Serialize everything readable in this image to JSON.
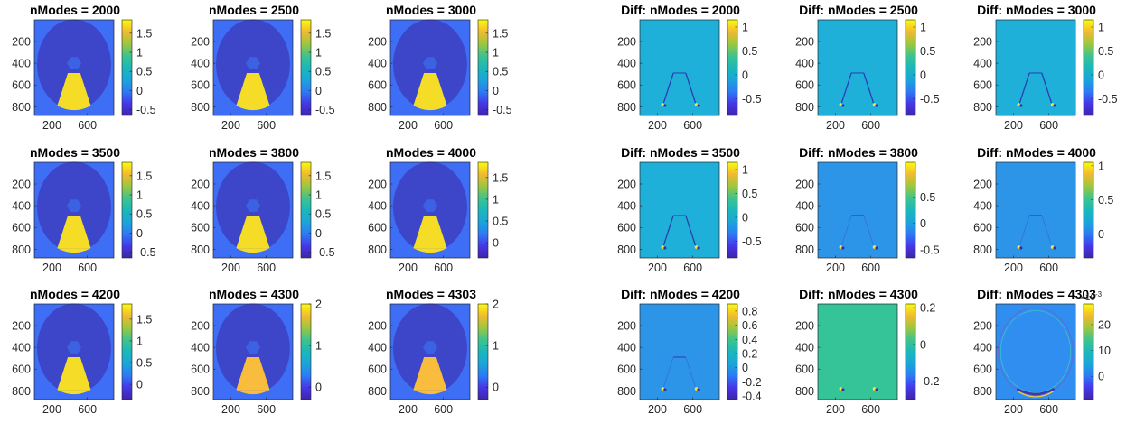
{
  "colors": {
    "background": "#ffffff",
    "axis_line": "#262626",
    "colormap": "parula",
    "outer_field": "#3d6ef5",
    "ellipse": "#3d45c8",
    "cone": "#f5dc27",
    "cone_alt": "#f8bd3c",
    "hexagon": "#3b62e2"
  },
  "chart_data": [
    {
      "type": "heatmap",
      "title": "nModes = 2000",
      "kind": "field",
      "x_ticks": [
        "200",
        "600"
      ],
      "y_ticks": [
        "200",
        "400",
        "600",
        "800"
      ],
      "xlim": [
        1,
        900
      ],
      "ylim": [
        1,
        880
      ],
      "colorbar": {
        "range": [
          -0.65,
          1.85
        ],
        "ticks": [
          1.5,
          1,
          0.5,
          0,
          -0.5
        ],
        "tick_labels": [
          "1.5",
          "1",
          "0.5",
          "0",
          "-0.5"
        ]
      }
    },
    {
      "type": "heatmap",
      "title": "nModes = 2500",
      "kind": "field",
      "x_ticks": [
        "200",
        "600"
      ],
      "y_ticks": [
        "200",
        "400",
        "600",
        "800"
      ],
      "xlim": [
        1,
        900
      ],
      "ylim": [
        1,
        880
      ],
      "colorbar": {
        "range": [
          -0.65,
          1.85
        ],
        "ticks": [
          1.5,
          1,
          0.5,
          0,
          -0.5
        ],
        "tick_labels": [
          "1.5",
          "1",
          "0.5",
          "0",
          "-0.5"
        ]
      }
    },
    {
      "type": "heatmap",
      "title": "nModes = 3000",
      "kind": "field",
      "x_ticks": [
        "200",
        "600"
      ],
      "y_ticks": [
        "200",
        "400",
        "600",
        "800"
      ],
      "xlim": [
        1,
        900
      ],
      "ylim": [
        1,
        880
      ],
      "colorbar": {
        "range": [
          -0.65,
          1.85
        ],
        "ticks": [
          1.5,
          1,
          0.5,
          0,
          -0.5
        ],
        "tick_labels": [
          "1.5",
          "1",
          "0.5",
          "0",
          "-0.5"
        ]
      }
    },
    {
      "type": "heatmap",
      "title": "Diff: nModes = 2000",
      "kind": "diff_a",
      "x_ticks": [
        "200",
        "600"
      ],
      "y_ticks": [
        "200",
        "400",
        "600",
        "800"
      ],
      "xlim": [
        1,
        900
      ],
      "ylim": [
        1,
        880
      ],
      "colorbar": {
        "range": [
          -0.85,
          1.15
        ],
        "ticks": [
          1,
          0.5,
          0,
          -0.5
        ],
        "tick_labels": [
          "1",
          "0.5",
          "0",
          "-0.5"
        ]
      }
    },
    {
      "type": "heatmap",
      "title": "Diff: nModes = 2500",
      "kind": "diff_a",
      "x_ticks": [
        "200",
        "600"
      ],
      "y_ticks": [
        "200",
        "400",
        "600",
        "800"
      ],
      "xlim": [
        1,
        900
      ],
      "ylim": [
        1,
        880
      ],
      "colorbar": {
        "range": [
          -0.85,
          1.15
        ],
        "ticks": [
          1,
          0.5,
          0,
          -0.5
        ],
        "tick_labels": [
          "1",
          "0.5",
          "0",
          "-0.5"
        ]
      }
    },
    {
      "type": "heatmap",
      "title": "Diff: nModes = 3000",
      "kind": "diff_a",
      "x_ticks": [
        "200",
        "600"
      ],
      "y_ticks": [
        "200",
        "400",
        "600",
        "800"
      ],
      "xlim": [
        1,
        900
      ],
      "ylim": [
        1,
        880
      ],
      "colorbar": {
        "range": [
          -0.85,
          1.15
        ],
        "ticks": [
          1,
          0.5,
          0,
          -0.5
        ],
        "tick_labels": [
          "1",
          "0.5",
          "0",
          "-0.5"
        ]
      }
    },
    {
      "type": "heatmap",
      "title": "nModes = 3500",
      "kind": "field",
      "x_ticks": [
        "200",
        "600"
      ],
      "y_ticks": [
        "200",
        "400",
        "600",
        "800"
      ],
      "xlim": [
        1,
        900
      ],
      "ylim": [
        1,
        880
      ],
      "colorbar": {
        "range": [
          -0.65,
          1.85
        ],
        "ticks": [
          1.5,
          1,
          0.5,
          0,
          -0.5
        ],
        "tick_labels": [
          "1.5",
          "1",
          "0.5",
          "0",
          "-0.5"
        ]
      }
    },
    {
      "type": "heatmap",
      "title": "nModes = 3800",
      "kind": "field",
      "x_ticks": [
        "200",
        "600"
      ],
      "y_ticks": [
        "200",
        "400",
        "600",
        "800"
      ],
      "xlim": [
        1,
        900
      ],
      "ylim": [
        1,
        880
      ],
      "colorbar": {
        "range": [
          -0.65,
          1.85
        ],
        "ticks": [
          1.5,
          1,
          0.5,
          0,
          -0.5
        ],
        "tick_labels": [
          "1.5",
          "1",
          "0.5",
          "0",
          "-0.5"
        ]
      }
    },
    {
      "type": "heatmap",
      "title": "nModes = 4000",
      "kind": "field",
      "x_ticks": [
        "200",
        "600"
      ],
      "y_ticks": [
        "200",
        "400",
        "600",
        "800"
      ],
      "xlim": [
        1,
        900
      ],
      "ylim": [
        1,
        880
      ],
      "colorbar": {
        "range": [
          -0.35,
          1.85
        ],
        "ticks": [
          1.5,
          1,
          0.5,
          0
        ],
        "tick_labels": [
          "1.5",
          "1",
          "0.5",
          "0"
        ]
      }
    },
    {
      "type": "heatmap",
      "title": "Diff: nModes = 3500",
      "kind": "diff_a",
      "x_ticks": [
        "200",
        "600"
      ],
      "y_ticks": [
        "200",
        "400",
        "600",
        "800"
      ],
      "xlim": [
        1,
        900
      ],
      "ylim": [
        1,
        880
      ],
      "colorbar": {
        "range": [
          -0.85,
          1.15
        ],
        "ticks": [
          1,
          0.5,
          0,
          -0.5
        ],
        "tick_labels": [
          "1",
          "0.5",
          "0",
          "-0.5"
        ]
      }
    },
    {
      "type": "heatmap",
      "title": "Diff: nModes = 3800",
      "kind": "diff_b",
      "x_ticks": [
        "200",
        "600"
      ],
      "y_ticks": [
        "200",
        "400",
        "600",
        "800"
      ],
      "xlim": [
        1,
        900
      ],
      "ylim": [
        1,
        880
      ],
      "colorbar": {
        "range": [
          -0.65,
          1.15
        ],
        "ticks": [
          0.5,
          0,
          -0.5
        ],
        "tick_labels": [
          "0.5",
          "0",
          "-0.5"
        ]
      }
    },
    {
      "type": "heatmap",
      "title": "Diff: nModes = 4000",
      "kind": "diff_b",
      "x_ticks": [
        "200",
        "600"
      ],
      "y_ticks": [
        "200",
        "400",
        "600",
        "800"
      ],
      "xlim": [
        1,
        900
      ],
      "ylim": [
        1,
        880
      ],
      "colorbar": {
        "range": [
          -0.35,
          1.05
        ],
        "ticks": [
          1,
          0.5,
          0
        ],
        "tick_labels": [
          "1",
          "0.5",
          "0"
        ]
      }
    },
    {
      "type": "heatmap",
      "title": "nModes = 4200",
      "kind": "field",
      "x_ticks": [
        "200",
        "600"
      ],
      "y_ticks": [
        "200",
        "400",
        "600",
        "800"
      ],
      "xlim": [
        1,
        900
      ],
      "ylim": [
        1,
        880
      ],
      "colorbar": {
        "range": [
          -0.35,
          1.85
        ],
        "ticks": [
          1.5,
          1,
          0.5,
          0
        ],
        "tick_labels": [
          "1.5",
          "1",
          "0.5",
          "0"
        ]
      }
    },
    {
      "type": "heatmap",
      "title": "nModes = 4300",
      "kind": "field_alt",
      "x_ticks": [
        "200",
        "600"
      ],
      "y_ticks": [
        "200",
        "400",
        "600",
        "800"
      ],
      "xlim": [
        1,
        900
      ],
      "ylim": [
        1,
        880
      ],
      "colorbar": {
        "range": [
          -0.3,
          2.0
        ],
        "ticks": [
          2,
          1,
          0
        ],
        "tick_labels": [
          "2",
          "1",
          "0"
        ]
      }
    },
    {
      "type": "heatmap",
      "title": "nModes = 4303",
      "kind": "field_alt",
      "x_ticks": [
        "200",
        "600"
      ],
      "y_ticks": [
        "200",
        "400",
        "600",
        "800"
      ],
      "xlim": [
        1,
        900
      ],
      "ylim": [
        1,
        880
      ],
      "colorbar": {
        "range": [
          -0.3,
          2.0
        ],
        "ticks": [
          2,
          1,
          0
        ],
        "tick_labels": [
          "2",
          "1",
          "0"
        ]
      }
    },
    {
      "type": "heatmap",
      "title": "Diff: nModes = 4200",
      "kind": "diff_b",
      "x_ticks": [
        "200",
        "600"
      ],
      "y_ticks": [
        "200",
        "400",
        "600",
        "800"
      ],
      "xlim": [
        1,
        900
      ],
      "ylim": [
        1,
        880
      ],
      "colorbar": {
        "range": [
          -0.45,
          0.9
        ],
        "ticks": [
          0.8,
          0.6,
          0.4,
          0.2,
          0,
          -0.2,
          -0.4
        ],
        "tick_labels": [
          "0.8",
          "0.6",
          "0.4",
          "0.2",
          "0",
          "-0.2",
          "-0.4"
        ]
      }
    },
    {
      "type": "heatmap",
      "title": "Diff: nModes = 4300",
      "kind": "diff_c",
      "x_ticks": [
        "200",
        "600"
      ],
      "y_ticks": [
        "200",
        "400",
        "600",
        "800"
      ],
      "xlim": [
        1,
        900
      ],
      "ylim": [
        1,
        880
      ],
      "colorbar": {
        "range": [
          -0.3,
          0.22
        ],
        "ticks": [
          0.2,
          0,
          -0.2
        ],
        "tick_labels": [
          "0.2",
          "0",
          "-0.2"
        ]
      }
    },
    {
      "type": "heatmap",
      "title": "Diff: nModes = 4303",
      "kind": "diff_d",
      "x_ticks": [
        "200",
        "600"
      ],
      "y_ticks": [
        "200",
        "400",
        "600",
        "800"
      ],
      "xlim": [
        1,
        900
      ],
      "ylim": [
        1,
        880
      ],
      "colorbar": {
        "range": [
          -9,
          28
        ],
        "ticks": [
          20,
          10,
          0
        ],
        "tick_labels": [
          "20",
          "10",
          "0"
        ],
        "multiplier": "×10-3"
      }
    }
  ]
}
